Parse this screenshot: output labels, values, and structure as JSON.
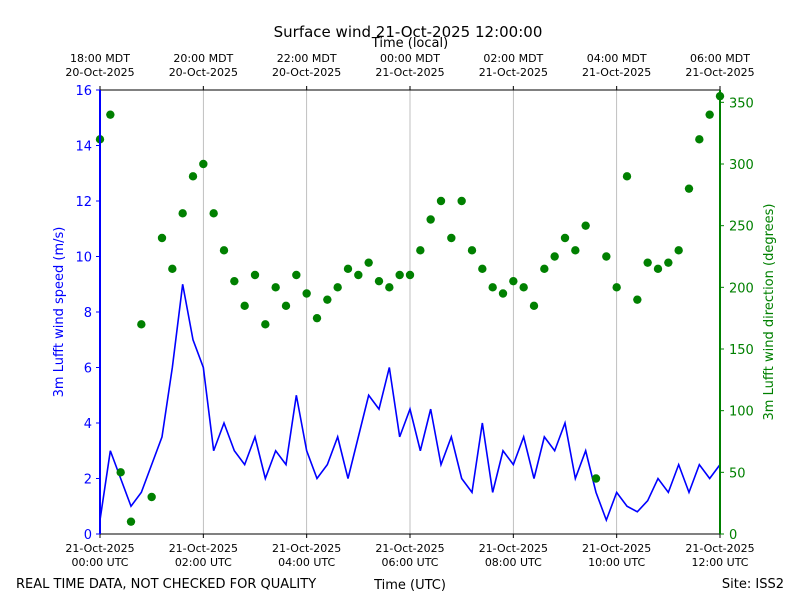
{
  "chart_data": {
    "type": "line",
    "title": "Surface wind 21-Oct-2025 12:00:00",
    "xlabel": "Time (UTC)",
    "x2label": "Time (local)",
    "ylabel": "3m Lufft wind speed (m/s)",
    "y2label": "3m Lufft wind direction (degrees)",
    "footer_left": "REAL TIME DATA, NOT CHECKED FOR QUALITY",
    "footer_right": "Site: ISS2",
    "xlim": [
      0,
      12
    ],
    "xticks": [
      {
        "value": 0,
        "label": [
          "21-Oct-2025",
          "00:00 UTC"
        ]
      },
      {
        "value": 2,
        "label": [
          "21-Oct-2025",
          "02:00 UTC"
        ]
      },
      {
        "value": 4,
        "label": [
          "21-Oct-2025",
          "04:00 UTC"
        ]
      },
      {
        "value": 6,
        "label": [
          "21-Oct-2025",
          "06:00 UTC"
        ]
      },
      {
        "value": 8,
        "label": [
          "21-Oct-2025",
          "08:00 UTC"
        ]
      },
      {
        "value": 10,
        "label": [
          "21-Oct-2025",
          "10:00 UTC"
        ]
      },
      {
        "value": 12,
        "label": [
          "21-Oct-2025",
          "12:00 UTC"
        ]
      }
    ],
    "x2ticks": [
      {
        "value": 0,
        "label": [
          "18:00 MDT",
          "20-Oct-2025"
        ]
      },
      {
        "value": 2,
        "label": [
          "20:00 MDT",
          "20-Oct-2025"
        ]
      },
      {
        "value": 4,
        "label": [
          "22:00 MDT",
          "20-Oct-2025"
        ]
      },
      {
        "value": 6,
        "label": [
          "00:00 MDT",
          "21-Oct-2025"
        ]
      },
      {
        "value": 8,
        "label": [
          "02:00 MDT",
          "21-Oct-2025"
        ]
      },
      {
        "value": 10,
        "label": [
          "04:00 MDT",
          "21-Oct-2025"
        ]
      },
      {
        "value": 12,
        "label": [
          "06:00 MDT",
          "21-Oct-2025"
        ]
      }
    ],
    "ylim": [
      0,
      16
    ],
    "yticks": [
      0,
      2,
      4,
      6,
      8,
      10,
      12,
      14,
      16
    ],
    "y2lim": [
      0,
      360
    ],
    "y2ticks": [
      0,
      50,
      100,
      150,
      200,
      250,
      300,
      350
    ],
    "grid": "x",
    "x": [
      0,
      0.2,
      0.4,
      0.6,
      0.8,
      1,
      1.2,
      1.4,
      1.6,
      1.8,
      2,
      2.2,
      2.4,
      2.6,
      2.8,
      3,
      3.2,
      3.4,
      3.6,
      3.8,
      4,
      4.2,
      4.4,
      4.6,
      4.8,
      5,
      5.2,
      5.4,
      5.6,
      5.8,
      6,
      6.2,
      6.4,
      6.6,
      6.8,
      7,
      7.2,
      7.4,
      7.6,
      7.8,
      8,
      8.2,
      8.4,
      8.6,
      8.8,
      9,
      9.2,
      9.4,
      9.6,
      9.8,
      10,
      10.2,
      10.4,
      10.6,
      10.8,
      11,
      11.2,
      11.4,
      11.6,
      11.8,
      12
    ],
    "series": [
      {
        "mark": "line",
        "axis": "y",
        "color": "#0000ff",
        "values": [
          0.5,
          3,
          2,
          1,
          1.5,
          2.5,
          3.5,
          6,
          9,
          7,
          6,
          3,
          4,
          3,
          2.5,
          3.5,
          2,
          3,
          2.5,
          5,
          3,
          2,
          2.5,
          3.5,
          2,
          3.5,
          5,
          4.5,
          6,
          3.5,
          4.5,
          3,
          4.5,
          2.5,
          3.5,
          2,
          1.5,
          4,
          1.5,
          3,
          2.5,
          3.5,
          2,
          3.5,
          3,
          4,
          2,
          3,
          1.5,
          0.5,
          1.5,
          1,
          0.8,
          1.2,
          2,
          1.5,
          2.5,
          1.5,
          2.5,
          2,
          2.5
        ]
      },
      {
        "mark": "dot",
        "axis": "y2",
        "color": "#008000",
        "values": [
          320,
          340,
          50,
          10,
          170,
          30,
          240,
          215,
          260,
          290,
          300,
          260,
          230,
          205,
          185,
          210,
          170,
          200,
          185,
          210,
          195,
          175,
          190,
          200,
          215,
          210,
          220,
          205,
          200,
          210,
          210,
          230,
          255,
          270,
          240,
          270,
          230,
          215,
          200,
          195,
          205,
          200,
          185,
          215,
          225,
          240,
          230,
          250,
          45,
          225,
          200,
          290,
          190,
          220,
          215,
          220,
          230,
          280,
          320,
          340,
          355
        ]
      }
    ]
  }
}
